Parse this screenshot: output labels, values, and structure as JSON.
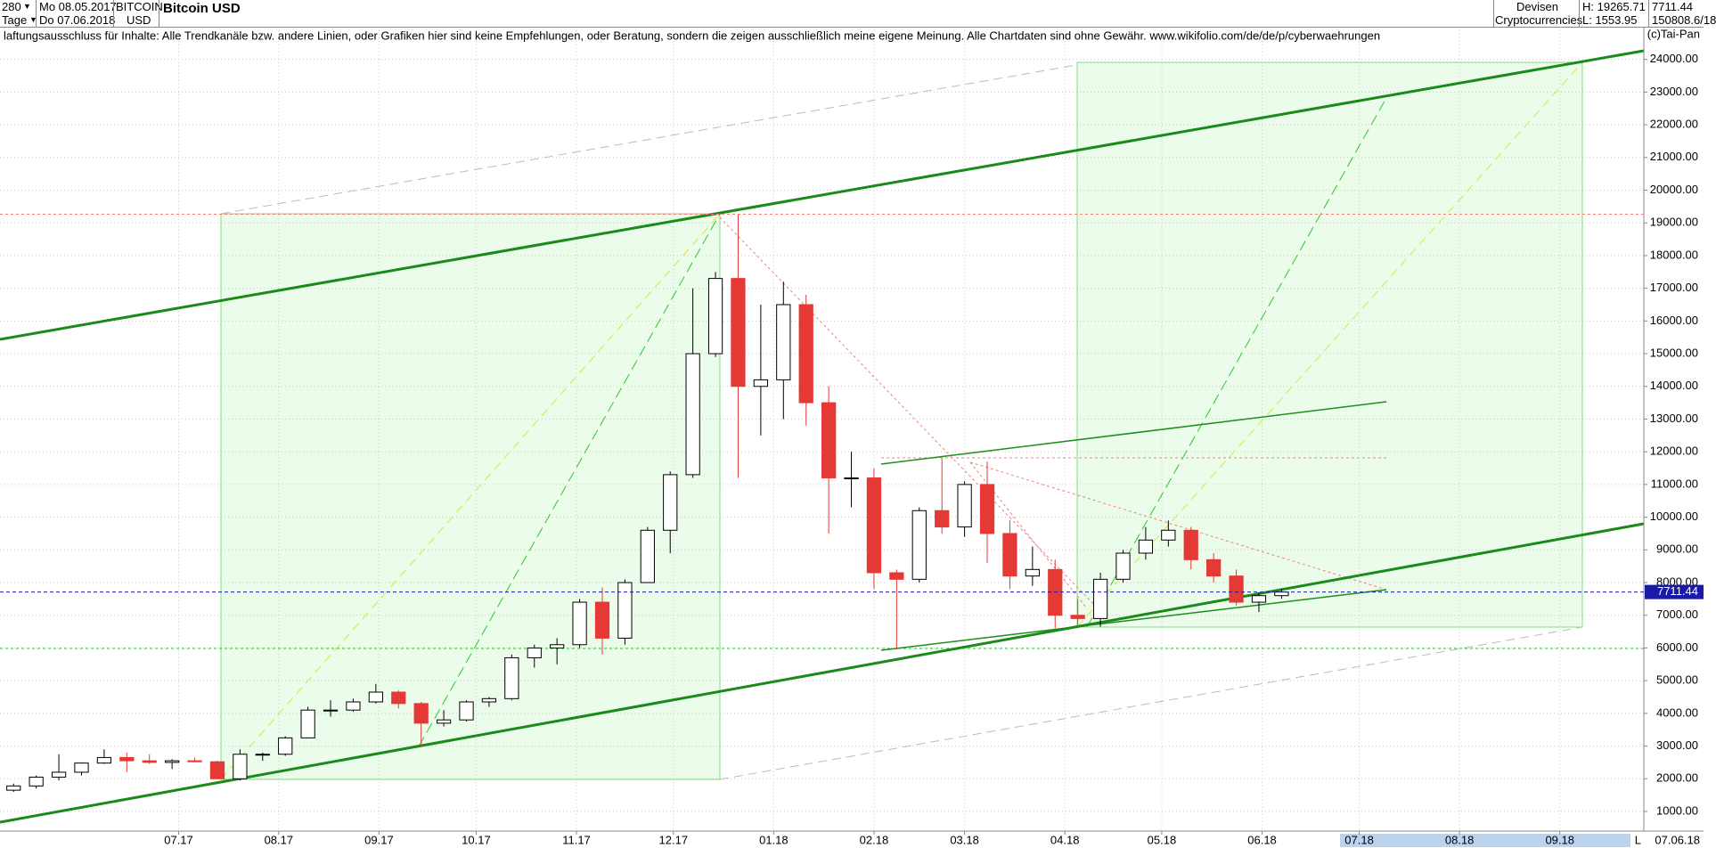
{
  "header": {
    "period": "280",
    "from": "Mo 08.05.2017",
    "unit": "Tage",
    "to": "Do 07.06.2018",
    "symbol": "BITCOIN",
    "currency": "USD",
    "market": "Devisen",
    "group": "Cryptocurrencies",
    "high": "H: 19265.71",
    "low": "L: 1553.95",
    "volume": "150808.6/18"
  },
  "chart_data": {
    "type": "candlestick",
    "title": "Bitcoin USD",
    "note": "laftungsausschluss für Inhalte: Alle Trendkanäle bzw. andere Linien, oder Grafiken hier sind keine Empfehlungen, oder Beratung, sondern die zeigen ausschließlich meine eigene Meinung. Alle Chartdaten sind ohne Gewähr.  www.wikifolio.com/de/de/p/cyberwaehrungen",
    "copyright": "(c)Tai-Pan",
    "end_label": "07.06.18",
    "scale_mode": "L",
    "categories": [
      null,
      null,
      null,
      null,
      null,
      null,
      null,
      null,
      null,
      null,
      null,
      null,
      null,
      null,
      null,
      null,
      null,
      null,
      null,
      null,
      null,
      null,
      null,
      null,
      null,
      null,
      null,
      null,
      null,
      null,
      null,
      null,
      null,
      null,
      null,
      null,
      null,
      null,
      null,
      null,
      null,
      null,
      null,
      null,
      null,
      null,
      null,
      null,
      null,
      null,
      null,
      null,
      null,
      null,
      null,
      null,
      null
    ],
    "open": [
      1650,
      1780,
      2050,
      2200,
      2480,
      2650,
      2550,
      2500,
      2550,
      2520,
      2000,
      2750,
      2750,
      3250,
      4100,
      4100,
      4350,
      4650,
      4300,
      3700,
      3800,
      4350,
      4450,
      5700,
      6000,
      6100,
      7400,
      6300,
      8000,
      9600,
      11300,
      15000,
      17300,
      14000,
      14200,
      16500,
      13500,
      11200,
      11200,
      8300,
      8100,
      10200,
      9700,
      11000,
      9500,
      8200,
      8400,
      7000,
      6900,
      8100,
      8900,
      9300,
      9600,
      8700,
      8200,
      7400,
      7600
    ],
    "high": [
      1850,
      2100,
      2750,
      2500,
      2900,
      2800,
      2750,
      2600,
      2650,
      2550,
      2900,
      2800,
      3300,
      4200,
      4400,
      4450,
      4900,
      4700,
      4350,
      4100,
      4400,
      4500,
      5800,
      6100,
      6300,
      7500,
      7850,
      8100,
      9700,
      11400,
      17000,
      17500,
      19265.71,
      16500,
      17200,
      16800,
      14000,
      12000,
      11500,
      8400,
      10300,
      11800,
      11100,
      11700,
      9900,
      9100,
      8700,
      7500,
      8300,
      9000,
      9700,
      9900,
      9700,
      8900,
      8400,
      7700,
      7800
    ],
    "low": [
      1600,
      1700,
      1950,
      2100,
      2450,
      2200,
      2450,
      2300,
      2500,
      2000,
      1950,
      2550,
      2700,
      3250,
      3900,
      4050,
      4300,
      4150,
      3000,
      3600,
      3750,
      4200,
      4400,
      5400,
      5500,
      6000,
      5800,
      6100,
      8000,
      8900,
      11200,
      14900,
      11200,
      12500,
      13000,
      12800,
      9500,
      10300,
      7800,
      5950,
      8000,
      9500,
      9400,
      8600,
      7800,
      7900,
      6600,
      6600,
      6650,
      8000,
      8700,
      9100,
      8400,
      8000,
      7300,
      7100,
      7500
    ],
    "close": [
      1780,
      2050,
      2200,
      2480,
      2650,
      2550,
      2500,
      2550,
      2520,
      2000,
      2750,
      2750,
      3250,
      4100,
      4100,
      4350,
      4650,
      4300,
      3700,
      3800,
      4350,
      4450,
      5700,
      6000,
      6100,
      7400,
      6300,
      8000,
      9600,
      11300,
      15000,
      17300,
      14000,
      14200,
      16500,
      13500,
      11200,
      11200,
      8300,
      8100,
      10200,
      9700,
      11000,
      9500,
      8200,
      8400,
      7000,
      6900,
      8100,
      8900,
      9300,
      9600,
      8700,
      8200,
      7400,
      7600,
      7711.44
    ],
    "up_color": "#000000",
    "down_color": "#e53935",
    "last_color": "#1a1aa8",
    "xlim": [
      -0.6,
      72
    ],
    "xticks": [
      {
        "value": 7.29,
        "label": "07.17"
      },
      {
        "value": 11.71,
        "label": "08.17"
      },
      {
        "value": 16.14,
        "label": "09.17"
      },
      {
        "value": 20.43,
        "label": "10.17"
      },
      {
        "value": 24.86,
        "label": "11.17"
      },
      {
        "value": 29.14,
        "label": "12.17"
      },
      {
        "value": 33.57,
        "label": "01.18"
      },
      {
        "value": 38,
        "label": "02.18"
      },
      {
        "value": 42,
        "label": "03.18"
      },
      {
        "value": 46.43,
        "label": "04.18"
      },
      {
        "value": 50.71,
        "label": "05.18"
      },
      {
        "value": 55.14,
        "label": "06.18"
      },
      {
        "value": 59.43,
        "label": "07.18"
      },
      {
        "value": 63.86,
        "label": "08.18"
      },
      {
        "value": 68.29,
        "label": "09.18"
      }
    ],
    "ylim": [
      400,
      24890
    ],
    "yticks": [
      {
        "value": 1000,
        "label": "1000.00"
      },
      {
        "value": 2000,
        "label": "2000.00"
      },
      {
        "value": 3000,
        "label": "3000.00"
      },
      {
        "value": 4000,
        "label": "4000.00"
      },
      {
        "value": 5000,
        "label": "5000.00"
      },
      {
        "value": 6000,
        "label": "6000.00"
      },
      {
        "value": 7000,
        "label": "7000.00"
      },
      {
        "value": 8000,
        "label": "8000.00"
      },
      {
        "value": 9000,
        "label": "9000.00"
      },
      {
        "value": 10000,
        "label": "10000.00"
      },
      {
        "value": 11000,
        "label": "11000.00"
      },
      {
        "value": 12000,
        "label": "12000.00"
      },
      {
        "value": 13000,
        "label": "13000.00"
      },
      {
        "value": 14000,
        "label": "14000.00"
      },
      {
        "value": 15000,
        "label": "15000.00"
      },
      {
        "value": 16000,
        "label": "16000.00"
      },
      {
        "value": 17000,
        "label": "17000.00"
      },
      {
        "value": 18000,
        "label": "18000.00"
      },
      {
        "value": 19000,
        "label": "19000.00"
      },
      {
        "value": 20000,
        "label": "20000.00"
      },
      {
        "value": 21000,
        "label": "21000.00"
      },
      {
        "value": 22000,
        "label": "22000.00"
      },
      {
        "value": 23000,
        "label": "23000.00"
      },
      {
        "value": 24000,
        "label": "24000.00"
      }
    ],
    "grid": true
  }
}
